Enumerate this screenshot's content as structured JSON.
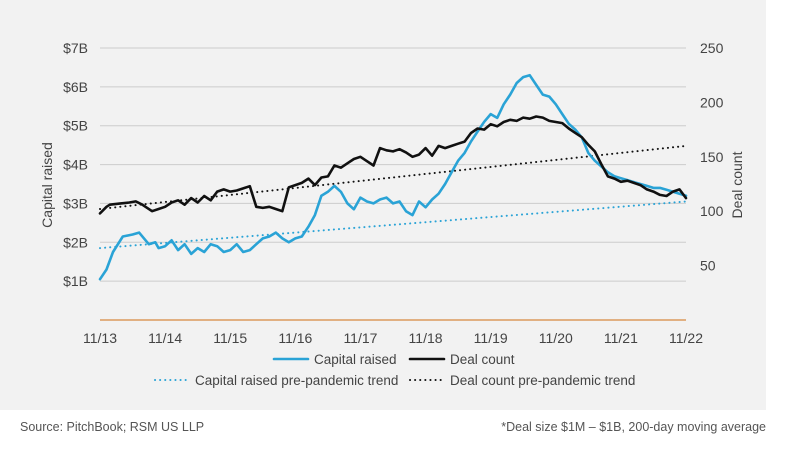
{
  "colors": {
    "capital": "#2aa3d6",
    "deals": "#111111",
    "axis_zero": "#d7893f",
    "grid": "#cccccc",
    "text": "#444444",
    "panel": "#f2f2f2"
  },
  "footer": {
    "source": "Source: PitchBook; RSM US LLP",
    "note": "*Deal size $1M – $1B, 200-day moving average"
  },
  "chart_data": {
    "type": "line",
    "title": "",
    "xlabel": "",
    "ylabel_left": "Capital raised",
    "ylabel_right": "Deal count",
    "ylim_left": [
      0,
      7
    ],
    "ylim_right": [
      0,
      250
    ],
    "left_ticks": [
      {
        "value": 1,
        "label": "$1B"
      },
      {
        "value": 2,
        "label": "$2B"
      },
      {
        "value": 3,
        "label": "$3B"
      },
      {
        "value": 4,
        "label": "$4B"
      },
      {
        "value": 5,
        "label": "$5B"
      },
      {
        "value": 6,
        "label": "$6B"
      },
      {
        "value": 7,
        "label": "$7B"
      }
    ],
    "right_ticks": [
      {
        "value": 50,
        "label": "50"
      },
      {
        "value": 100,
        "label": "100"
      },
      {
        "value": 150,
        "label": "150"
      },
      {
        "value": 200,
        "label": "200"
      },
      {
        "value": 250,
        "label": "250"
      }
    ],
    "x_ticks": [
      {
        "value": 0,
        "label": "11/13"
      },
      {
        "value": 1,
        "label": "11/14"
      },
      {
        "value": 2,
        "label": "11/15"
      },
      {
        "value": 3,
        "label": "11/16"
      },
      {
        "value": 4,
        "label": "11/17"
      },
      {
        "value": 5,
        "label": "11/18"
      },
      {
        "value": 6,
        "label": "11/19"
      },
      {
        "value": 7,
        "label": "11/20"
      },
      {
        "value": 8,
        "label": "11/21"
      },
      {
        "value": 9,
        "label": "11/22"
      }
    ],
    "legend": {
      "position": "bottom",
      "items": [
        {
          "name": "Capital raised",
          "style": "solid",
          "color": "#2aa3d6"
        },
        {
          "name": "Deal count",
          "style": "solid",
          "color": "#111111"
        },
        {
          "name": "Capital raised pre-pandemic trend",
          "style": "dotted",
          "color": "#2aa3d6"
        },
        {
          "name": "Deal count pre-pandemic trend",
          "style": "dotted",
          "color": "#111111"
        }
      ]
    },
    "series": [
      {
        "name": "Capital raised",
        "axis": "left",
        "x": [
          0.0,
          0.1,
          0.2,
          0.35,
          0.5,
          0.6,
          0.75,
          0.85,
          0.9,
          1.0,
          1.1,
          1.2,
          1.3,
          1.4,
          1.5,
          1.6,
          1.7,
          1.8,
          1.9,
          2.0,
          2.1,
          2.2,
          2.3,
          2.4,
          2.5,
          2.6,
          2.7,
          2.8,
          2.9,
          3.0,
          3.1,
          3.2,
          3.3,
          3.4,
          3.5,
          3.6,
          3.7,
          3.8,
          3.9,
          4.0,
          4.1,
          4.2,
          4.3,
          4.4,
          4.5,
          4.6,
          4.7,
          4.8,
          4.9,
          5.0,
          5.1,
          5.2,
          5.3,
          5.4,
          5.5,
          5.6,
          5.7,
          5.8,
          5.9,
          6.0,
          6.1,
          6.2,
          6.3,
          6.4,
          6.5,
          6.6,
          6.7,
          6.8,
          6.9,
          7.0,
          7.1,
          7.2,
          7.3,
          7.4,
          7.5,
          7.6,
          7.7,
          7.8,
          7.9,
          8.0,
          8.1,
          8.2,
          8.3,
          8.4,
          8.5,
          8.6,
          8.7,
          8.8,
          8.9,
          9.0
        ],
        "values": [
          1.05,
          1.3,
          1.75,
          2.15,
          2.2,
          2.25,
          1.95,
          2.0,
          1.85,
          1.9,
          2.05,
          1.8,
          1.95,
          1.7,
          1.85,
          1.75,
          1.95,
          1.9,
          1.75,
          1.8,
          1.95,
          1.75,
          1.8,
          1.95,
          2.1,
          2.15,
          2.25,
          2.1,
          2.0,
          2.1,
          2.15,
          2.4,
          2.7,
          3.2,
          3.3,
          3.45,
          3.3,
          3.0,
          2.85,
          3.15,
          3.05,
          3.0,
          3.1,
          3.15,
          3.0,
          3.05,
          2.8,
          2.7,
          3.05,
          2.9,
          3.1,
          3.25,
          3.5,
          3.8,
          4.1,
          4.3,
          4.6,
          4.85,
          5.1,
          5.3,
          5.2,
          5.55,
          5.8,
          6.1,
          6.25,
          6.3,
          6.05,
          5.8,
          5.75,
          5.55,
          5.3,
          5.05,
          4.9,
          4.7,
          4.3,
          4.1,
          3.95,
          3.8,
          3.7,
          3.65,
          3.6,
          3.55,
          3.5,
          3.45,
          3.4,
          3.4,
          3.35,
          3.3,
          3.25,
          3.2
        ],
        "x_note": "x is years since 11/13"
      },
      {
        "name": "Deal count",
        "axis": "right",
        "x": [
          0.0,
          0.1,
          0.15,
          0.3,
          0.45,
          0.55,
          0.65,
          0.8,
          0.9,
          1.0,
          1.1,
          1.2,
          1.3,
          1.4,
          1.5,
          1.6,
          1.7,
          1.8,
          1.9,
          2.0,
          2.1,
          2.2,
          2.3,
          2.4,
          2.5,
          2.6,
          2.7,
          2.8,
          2.9,
          3.0,
          3.1,
          3.2,
          3.3,
          3.4,
          3.5,
          3.6,
          3.7,
          3.8,
          3.9,
          4.0,
          4.1,
          4.2,
          4.3,
          4.4,
          4.5,
          4.6,
          4.7,
          4.8,
          4.9,
          5.0,
          5.1,
          5.2,
          5.3,
          5.4,
          5.5,
          5.6,
          5.7,
          5.8,
          5.9,
          6.0,
          6.1,
          6.2,
          6.3,
          6.4,
          6.5,
          6.6,
          6.7,
          6.8,
          6.9,
          7.0,
          7.1,
          7.2,
          7.3,
          7.4,
          7.5,
          7.6,
          7.7,
          7.8,
          7.9,
          8.0,
          8.1,
          8.2,
          8.3,
          8.4,
          8.5,
          8.6,
          8.7,
          8.8,
          8.9,
          9.0
        ],
        "values": [
          98,
          104,
          106,
          107,
          108,
          109,
          106,
          100,
          102,
          104,
          108,
          110,
          106,
          112,
          108,
          114,
          110,
          118,
          120,
          118,
          119,
          121,
          123,
          104,
          103,
          104,
          102,
          100,
          122,
          124,
          126,
          130,
          124,
          131,
          132,
          142,
          140,
          144,
          148,
          150,
          146,
          142,
          158,
          156,
          155,
          157,
          154,
          150,
          152,
          158,
          151,
          160,
          158,
          160,
          162,
          164,
          172,
          176,
          175,
          180,
          178,
          182,
          184,
          183,
          186,
          185,
          187,
          186,
          183,
          182,
          181,
          176,
          172,
          168,
          161,
          155,
          143,
          132,
          130,
          127,
          128,
          126,
          124,
          120,
          118,
          115,
          114,
          118,
          120,
          112
        ]
      },
      {
        "name": "Capital raised pre-pandemic trend",
        "axis": "left",
        "style": "dotted",
        "x": [
          0,
          9
        ],
        "values": [
          1.85,
          3.05
        ]
      },
      {
        "name": "Deal count pre-pandemic trend",
        "axis": "right",
        "style": "dotted",
        "x": [
          0,
          9
        ],
        "values": [
          102,
          160
        ]
      }
    ]
  }
}
